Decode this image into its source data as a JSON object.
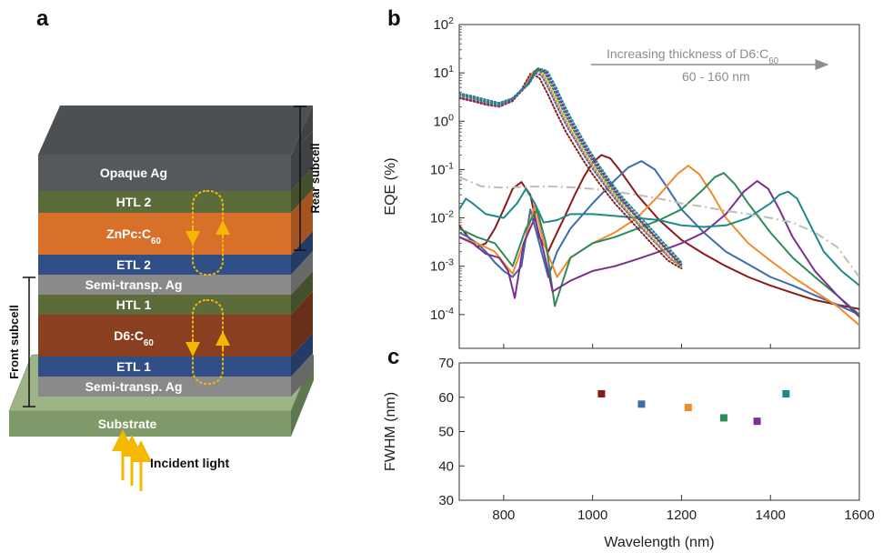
{
  "panels": {
    "a": "a",
    "b": "b",
    "c": "c"
  },
  "stack": {
    "layers": [
      {
        "label": "Opaque Ag",
        "sub": "",
        "color": "#55595c"
      },
      {
        "label": "HTL 2",
        "sub": "",
        "color": "#5b6b3a"
      },
      {
        "label": "ZnPc:C",
        "sub": "60",
        "color": "#d9702a"
      },
      {
        "label": "ETL 2",
        "sub": "",
        "color": "#2f4f86"
      },
      {
        "label": "Semi-transp. Ag",
        "sub": "",
        "color": "#8a8a8a"
      },
      {
        "label": "HTL 1",
        "sub": "",
        "color": "#5b6b3a"
      },
      {
        "label": "D6:C",
        "sub": "60",
        "color": "#8a4020"
      },
      {
        "label": "ETL 1",
        "sub": "",
        "color": "#2f4f86"
      },
      {
        "label": "Semi-transp. Ag",
        "sub": "",
        "color": "#8a8a8a"
      }
    ],
    "substrate": {
      "label": "Substrate",
      "color": "#7e9a68"
    },
    "rear_subcell": "Rear subcell",
    "front_subcell": "Front subcell",
    "incident_light": "Incident light"
  },
  "chart_data": [
    {
      "type": "line",
      "panel": "b",
      "xlabel": "",
      "ylabel": "EQE (%)",
      "xlim": [
        700,
        1600
      ],
      "ylim": [
        2e-05,
        100
      ],
      "yscale": "log",
      "ytick_base": "10",
      "yticks": [
        {
          "value": 0.0001,
          "exp": "-4"
        },
        {
          "value": 0.001,
          "exp": "-3"
        },
        {
          "value": 0.01,
          "exp": "-2"
        },
        {
          "value": 0.1,
          "exp": "-1"
        },
        {
          "value": 1,
          "exp": "0"
        },
        {
          "value": 10,
          "exp": "1"
        },
        {
          "value": 100,
          "exp": "2"
        }
      ],
      "annotation": {
        "text": "Increasing thickness of D6:C",
        "sub": "60",
        "range": "60 - 160 nm"
      },
      "series": [
        {
          "color": "#8b1a1a",
          "style": "solid",
          "x": [
            700,
            720,
            740,
            760,
            780,
            800,
            820,
            840,
            860,
            880,
            900,
            920,
            940,
            960,
            980,
            1000,
            1020,
            1040,
            1060,
            1080,
            1100,
            1150,
            1200,
            1250,
            1300,
            1350,
            1400,
            1450,
            1500,
            1550,
            1600
          ],
          "y": [
            0.007,
            0.004,
            0.0025,
            0.003,
            0.006,
            0.015,
            0.04,
            0.055,
            0.03,
            0.004,
            0.002,
            0.005,
            0.012,
            0.03,
            0.07,
            0.14,
            0.2,
            0.17,
            0.1,
            0.055,
            0.03,
            0.009,
            0.0035,
            0.0018,
            0.001,
            0.0006,
            0.0004,
            0.00028,
            0.0002,
            0.00016,
            0.00013
          ]
        },
        {
          "color": "#3e6bad",
          "style": "solid",
          "x": [
            700,
            720,
            740,
            760,
            780,
            800,
            820,
            840,
            860,
            880,
            900,
            920,
            950,
            1000,
            1050,
            1080,
            1110,
            1140,
            1170,
            1200,
            1250,
            1300,
            1350,
            1400,
            1450,
            1500,
            1550,
            1600
          ],
          "y": [
            0.005,
            0.004,
            0.003,
            0.002,
            0.0012,
            0.0008,
            0.0006,
            0.001,
            0.015,
            0.003,
            0.0006,
            0.002,
            0.006,
            0.02,
            0.06,
            0.11,
            0.15,
            0.1,
            0.04,
            0.015,
            0.005,
            0.002,
            0.0011,
            0.0006,
            0.0004,
            0.00025,
            0.00016,
            0.0001
          ]
        },
        {
          "color": "#f28a2e",
          "style": "solid",
          "x": [
            700,
            740,
            780,
            820,
            850,
            870,
            890,
            920,
            950,
            1000,
            1050,
            1100,
            1150,
            1190,
            1215,
            1240,
            1270,
            1300,
            1350,
            1400,
            1450,
            1500,
            1550,
            1600
          ],
          "y": [
            0.004,
            0.003,
            0.002,
            0.0007,
            0.004,
            0.018,
            0.003,
            0.0006,
            0.0015,
            0.003,
            0.005,
            0.01,
            0.03,
            0.08,
            0.12,
            0.08,
            0.03,
            0.01,
            0.003,
            0.0013,
            0.0006,
            0.0003,
            0.00015,
            6e-05
          ]
        },
        {
          "color": "#2e8b57",
          "style": "solid",
          "x": [
            700,
            740,
            780,
            820,
            850,
            875,
            895,
            915,
            950,
            1000,
            1050,
            1100,
            1150,
            1200,
            1250,
            1275,
            1295,
            1320,
            1350,
            1400,
            1450,
            1500,
            1550,
            1600
          ],
          "y": [
            0.006,
            0.004,
            0.003,
            0.001,
            0.006,
            0.015,
            0.003,
            0.00015,
            0.0015,
            0.003,
            0.004,
            0.006,
            0.009,
            0.015,
            0.04,
            0.07,
            0.085,
            0.05,
            0.02,
            0.005,
            0.0015,
            0.0006,
            0.00025,
            0.0001
          ]
        },
        {
          "color": "#7b2f8e",
          "style": "solid",
          "x": [
            700,
            730,
            760,
            790,
            810,
            825,
            845,
            870,
            890,
            910,
            950,
            1000,
            1050,
            1100,
            1150,
            1200,
            1250,
            1300,
            1340,
            1370,
            1395,
            1420,
            1450,
            1500,
            1550,
            1600
          ],
          "y": [
            0.004,
            0.003,
            0.0018,
            0.0015,
            0.0008,
            0.00022,
            0.003,
            0.01,
            0.002,
            0.0003,
            0.0005,
            0.0008,
            0.001,
            0.0014,
            0.002,
            0.003,
            0.005,
            0.012,
            0.035,
            0.058,
            0.04,
            0.015,
            0.004,
            0.0008,
            0.00025,
            9e-05
          ]
        },
        {
          "color": "#1a8a8a",
          "style": "solid",
          "x": [
            700,
            715,
            730,
            760,
            800,
            830,
            850,
            870,
            890,
            920,
            950,
            1000,
            1050,
            1100,
            1150,
            1200,
            1250,
            1300,
            1350,
            1400,
            1420,
            1440,
            1460,
            1490,
            1520,
            1560,
            1600
          ],
          "y": [
            0.015,
            0.025,
            0.02,
            0.012,
            0.01,
            0.02,
            0.04,
            0.02,
            0.008,
            0.009,
            0.012,
            0.012,
            0.011,
            0.01,
            0.009,
            0.007,
            0.0065,
            0.007,
            0.01,
            0.02,
            0.03,
            0.035,
            0.025,
            0.007,
            0.002,
            0.0008,
            0.0004
          ]
        },
        {
          "color": "#bdbdbd",
          "style": "dashdot",
          "x": [
            700,
            750,
            800,
            850,
            900,
            950,
            1000,
            1050,
            1100,
            1150,
            1200,
            1250,
            1300,
            1350,
            1400,
            1450,
            1500,
            1550,
            1600
          ],
          "y": [
            0.07,
            0.045,
            0.042,
            0.044,
            0.045,
            0.043,
            0.04,
            0.035,
            0.03,
            0.025,
            0.02,
            0.017,
            0.014,
            0.012,
            0.01,
            0.008,
            0.005,
            0.0025,
            0.0006
          ]
        },
        {
          "color": "#8b1a1a",
          "style": "dotted",
          "x": [
            700,
            730,
            760,
            790,
            820,
            840,
            860,
            880,
            900,
            920,
            940,
            960,
            980,
            1000,
            1020,
            1050,
            1080,
            1110,
            1140,
            1170,
            1200
          ],
          "y": [
            3.0,
            2.6,
            2.2,
            2.0,
            2.6,
            4.5,
            9.5,
            8.0,
            3.5,
            1.4,
            0.6,
            0.3,
            0.15,
            0.08,
            0.045,
            0.02,
            0.01,
            0.005,
            0.0025,
            0.0013,
            0.0009
          ]
        },
        {
          "color": "#3e6bad",
          "style": "dotted",
          "x": [
            700,
            730,
            760,
            790,
            820,
            845,
            865,
            885,
            905,
            925,
            945,
            965,
            985,
            1005,
            1025,
            1055,
            1085,
            1115,
            1145,
            1175,
            1200
          ],
          "y": [
            3.8,
            3.3,
            2.8,
            2.4,
            3.0,
            5.0,
            10.0,
            9.0,
            4.0,
            1.6,
            0.7,
            0.35,
            0.17,
            0.09,
            0.05,
            0.022,
            0.011,
            0.0055,
            0.0028,
            0.0014,
            0.001
          ]
        },
        {
          "color": "#f28a2e",
          "style": "dotted",
          "x": [
            700,
            730,
            760,
            790,
            820,
            848,
            868,
            888,
            908,
            928,
            948,
            968,
            988,
            1008,
            1028,
            1058,
            1088,
            1118,
            1148,
            1178,
            1200
          ],
          "y": [
            3.3,
            2.9,
            2.4,
            2.1,
            2.8,
            5.2,
            11.0,
            9.5,
            4.2,
            1.7,
            0.75,
            0.36,
            0.18,
            0.095,
            0.052,
            0.023,
            0.011,
            0.0056,
            0.0028,
            0.0014,
            0.001
          ]
        },
        {
          "color": "#2e8b57",
          "style": "dotted",
          "x": [
            700,
            730,
            760,
            790,
            820,
            852,
            872,
            892,
            912,
            932,
            952,
            972,
            992,
            1012,
            1032,
            1062,
            1092,
            1122,
            1152,
            1182,
            1200
          ],
          "y": [
            3.5,
            3.0,
            2.5,
            2.2,
            2.9,
            5.5,
            11.5,
            10.0,
            4.5,
            1.8,
            0.8,
            0.38,
            0.19,
            0.1,
            0.055,
            0.024,
            0.012,
            0.006,
            0.003,
            0.0015,
            0.001
          ]
        },
        {
          "color": "#7b2f8e",
          "style": "dotted",
          "x": [
            700,
            730,
            760,
            790,
            820,
            855,
            875,
            895,
            915,
            935,
            955,
            975,
            995,
            1015,
            1035,
            1065,
            1095,
            1125,
            1155,
            1185,
            1200
          ],
          "y": [
            3.1,
            2.7,
            2.3,
            2.0,
            2.7,
            5.8,
            12.0,
            10.5,
            4.8,
            1.9,
            0.85,
            0.4,
            0.2,
            0.105,
            0.058,
            0.025,
            0.012,
            0.006,
            0.003,
            0.0015,
            0.0011
          ]
        },
        {
          "color": "#1a8a8a",
          "style": "dotted",
          "x": [
            700,
            730,
            760,
            790,
            820,
            858,
            878,
            898,
            918,
            938,
            958,
            978,
            998,
            1018,
            1038,
            1068,
            1098,
            1128,
            1158,
            1188,
            1200
          ],
          "y": [
            3.6,
            3.1,
            2.6,
            2.3,
            3.0,
            6.0,
            12.5,
            11.0,
            5.0,
            2.0,
            0.9,
            0.42,
            0.21,
            0.11,
            0.06,
            0.026,
            0.013,
            0.0065,
            0.0032,
            0.0016,
            0.0012
          ]
        }
      ]
    },
    {
      "type": "scatter",
      "panel": "c",
      "xlabel": "Wavelength (nm)",
      "ylabel": "FWHM (nm)",
      "xlim": [
        700,
        1600
      ],
      "ylim": [
        30,
        70
      ],
      "xticks": [
        800,
        1000,
        1200,
        1400,
        1600
      ],
      "yticks": [
        30,
        40,
        50,
        60,
        70
      ],
      "points": [
        {
          "x": 1020,
          "y": 61,
          "color": "#8b1a1a"
        },
        {
          "x": 1110,
          "y": 58,
          "color": "#3e6bad"
        },
        {
          "x": 1215,
          "y": 57,
          "color": "#f28a2e"
        },
        {
          "x": 1295,
          "y": 54,
          "color": "#2e8b57"
        },
        {
          "x": 1370,
          "y": 53,
          "color": "#7b2f8e"
        },
        {
          "x": 1435,
          "y": 61,
          "color": "#1a8a8a"
        }
      ]
    }
  ]
}
